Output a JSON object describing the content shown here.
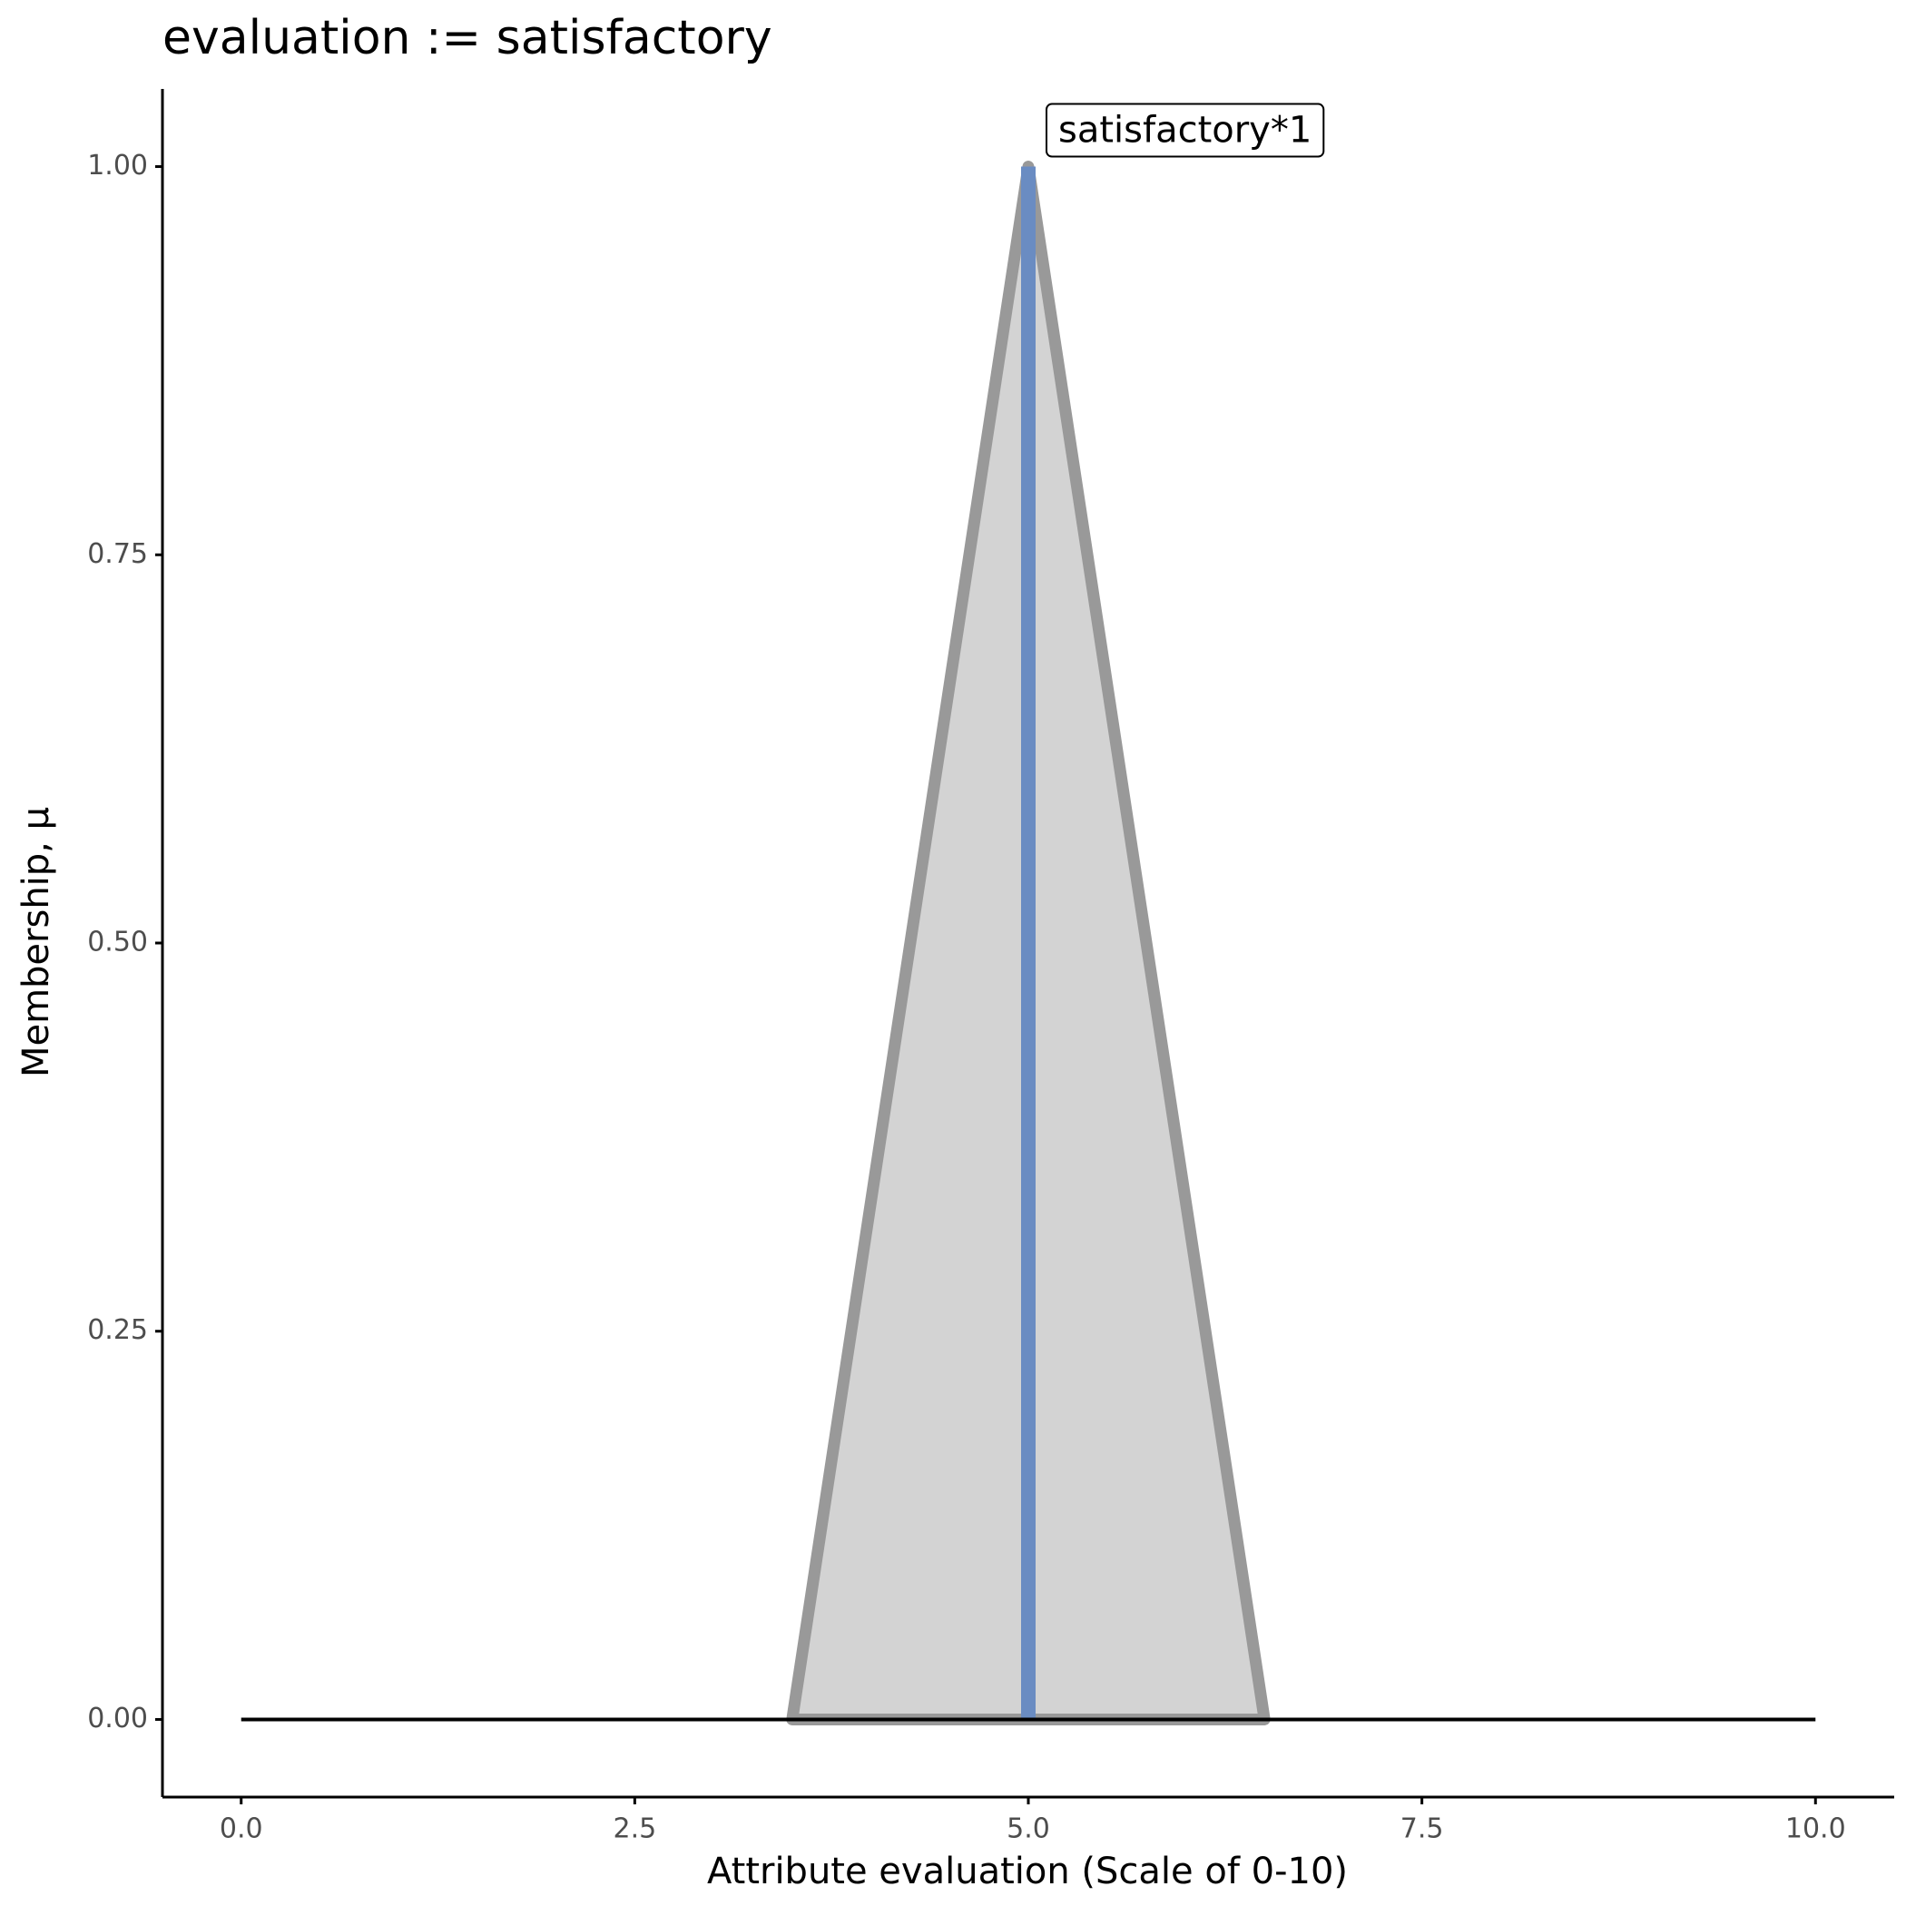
{
  "chart_data": {
    "type": "area",
    "title": "evaluation := satisfactory",
    "x_label": "Attribute evaluation (Scale of 0-10)",
    "y_label": "Membership, μ",
    "xlim": [
      -0.5,
      10.5
    ],
    "ylim": [
      -0.05,
      1.05
    ],
    "xticks": [
      {
        "value": 0,
        "label": "0.0"
      },
      2.5,
      {
        "value": 5,
        "label": "5.0"
      },
      7.5,
      {
        "value": 10,
        "label": "10.0"
      }
    ],
    "yticks": [
      {
        "value": 0,
        "label": "0.00"
      },
      0.25,
      {
        "value": 0.5,
        "label": "0.50"
      },
      0.75,
      {
        "value": 1,
        "label": "1.00"
      }
    ],
    "grid": false,
    "series": [
      {
        "type": "area",
        "color": "#999999",
        "fill": "#d3d3d3",
        "x": [
          3.5,
          5,
          6.5
        ],
        "values": [
          0,
          1,
          0
        ]
      },
      {
        "type": "line",
        "color": "#6a8cc2",
        "x": [
          5,
          5
        ],
        "values": [
          0,
          1
        ]
      },
      {
        "type": "line",
        "color": "#000000",
        "x": [
          0,
          10
        ],
        "values": [
          0,
          0
        ]
      }
    ],
    "annotations": [
      {
        "text": "satisfactory*1",
        "x": 5,
        "y": 1
      }
    ]
  }
}
